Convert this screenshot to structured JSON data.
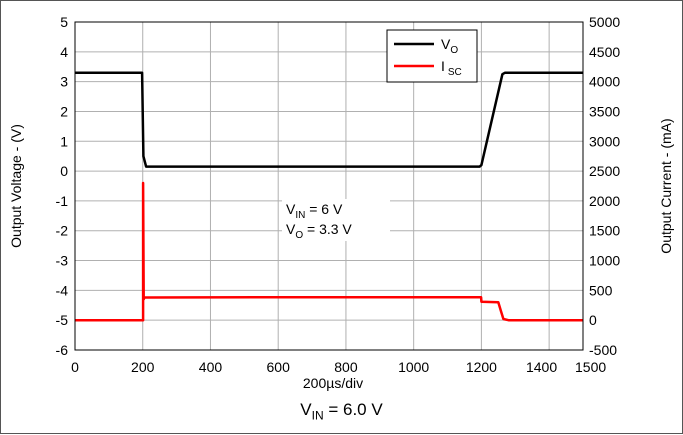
{
  "chart_data": {
    "type": "line",
    "x_range": [
      0,
      1500
    ],
    "x_ticks": [
      0,
      200,
      400,
      600,
      800,
      1000,
      1200,
      1400,
      1500
    ],
    "xlabel": "200µs/div",
    "y_left": {
      "label": "Output Voltage - (V)",
      "range": [
        -6,
        5
      ],
      "ticks": [
        5,
        4,
        3,
        2,
        1,
        0,
        -1,
        -2,
        -3,
        -4,
        -5,
        -6
      ]
    },
    "y_right": {
      "label": "Output Current - (mA)",
      "range": [
        -500,
        5000
      ],
      "ticks": [
        5000,
        4500,
        4000,
        3500,
        3000,
        2500,
        2000,
        1500,
        1000,
        500,
        0,
        -500
      ]
    },
    "grid": true,
    "legend_position": "top-right",
    "series": [
      {
        "name_main": "V",
        "name_sub": "O",
        "color": "#000000",
        "axis": "left",
        "x": [
          0,
          198,
          202,
          210,
          600,
          1000,
          1195,
          1200,
          1262,
          1270,
          1500
        ],
        "y": [
          3.3,
          3.3,
          0.5,
          0.15,
          0.15,
          0.15,
          0.15,
          0.2,
          3.25,
          3.3,
          3.3
        ]
      },
      {
        "name_main": "I",
        "name_sub": "SC",
        "color": "#ff0000",
        "axis": "right",
        "x": [
          0,
          198,
          201,
          201,
          203,
          205,
          215,
          600,
          1000,
          1199,
          1200,
          1250,
          1258,
          1265,
          1280,
          1500
        ],
        "y": [
          0,
          0,
          0,
          2300,
          350,
          380,
          380,
          385,
          385,
          385,
          310,
          300,
          150,
          20,
          0,
          0
        ]
      }
    ],
    "annotation": {
      "line1_main": "V",
      "line1_sub": "IN",
      "line1_rest": " = 6 V",
      "line2_main": "V",
      "line2_sub": "O",
      "line2_rest": " = 3.3 V"
    }
  },
  "caption": {
    "main": "V",
    "sub": "IN",
    "rest": " = 6.0 V"
  }
}
